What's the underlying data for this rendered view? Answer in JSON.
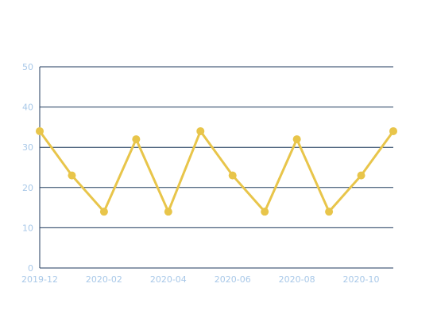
{
  "colors": {
    "series": "#e8c54a",
    "grid": "#1f3a5c",
    "axis": "#1f3a5c",
    "tick_label": "#a8c8e8"
  },
  "chart_data": {
    "type": "line",
    "x": [
      "2019-12",
      "2020-01",
      "2020-02",
      "2020-03",
      "2020-04",
      "2020-05",
      "2020-06",
      "2020-07",
      "2020-08",
      "2020-09",
      "2020-10",
      "2020-11"
    ],
    "x_tick_labels": [
      "2019-12",
      "2020-02",
      "2020-04",
      "2020-06",
      "2020-08",
      "2020-10"
    ],
    "y_ticks": [
      0,
      10,
      20,
      30,
      40,
      50
    ],
    "ylim": [
      0,
      50
    ],
    "grid": true,
    "legend": "none",
    "title": "",
    "xlabel": "",
    "ylabel": "",
    "series": [
      {
        "values": [
          34,
          23,
          14,
          32,
          14,
          34,
          23,
          14,
          32,
          14,
          23,
          34
        ]
      }
    ]
  }
}
